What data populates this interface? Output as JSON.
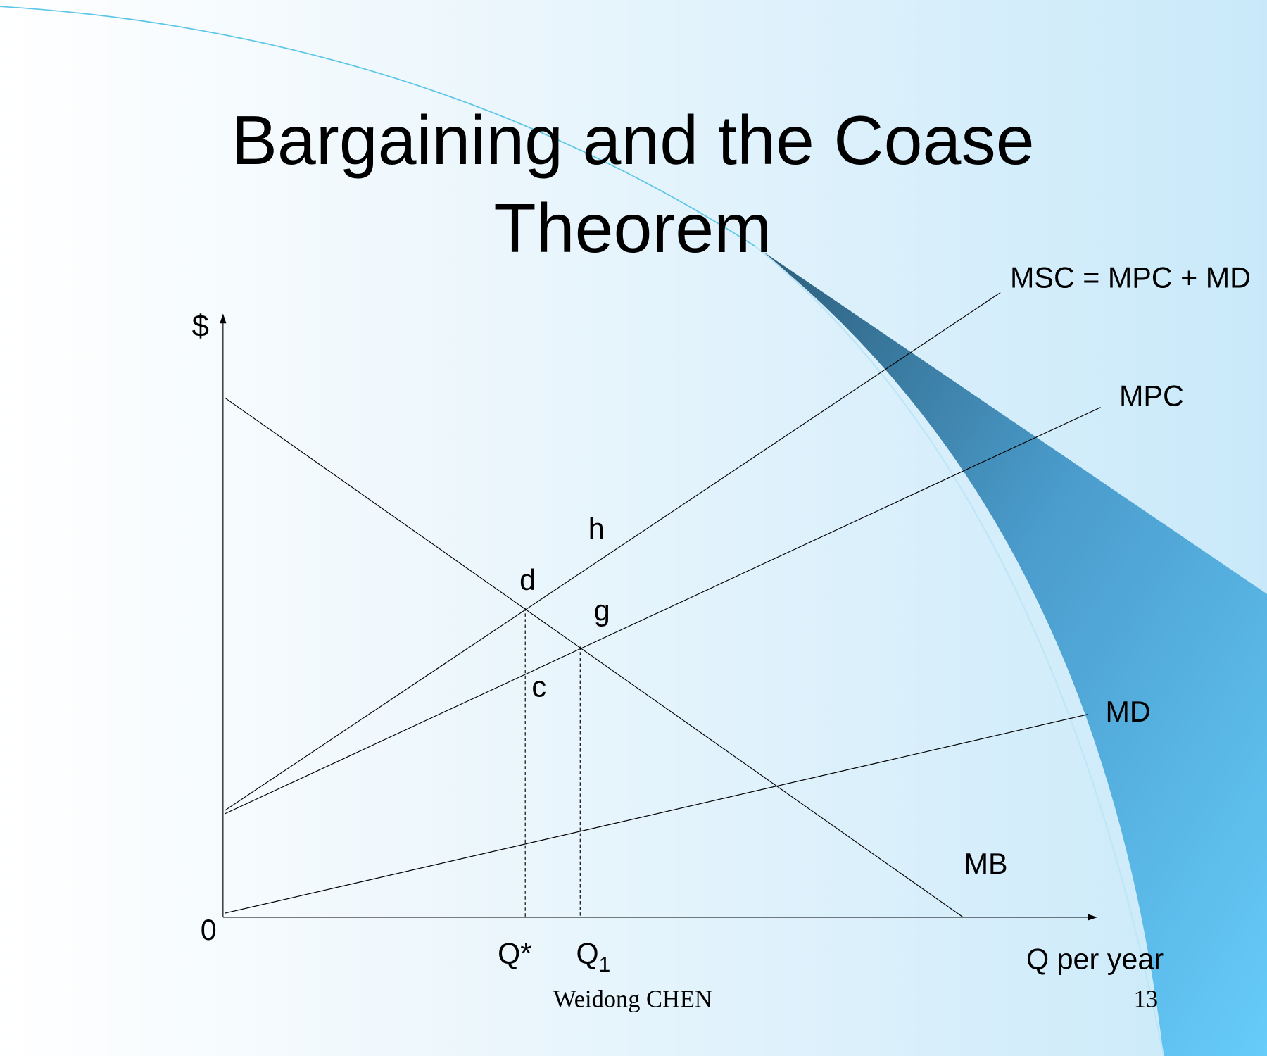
{
  "slide": {
    "title": [
      "Bargaining and the Coase",
      "Theorem"
    ],
    "diagram": {
      "y_axis_label": "$",
      "origin_label": "0",
      "x_axis_label": "Q per year",
      "q_star": "Q*",
      "q1": {
        "label": "Q",
        "subscript": "1"
      },
      "curves": {
        "msc": "MSC = MPC + MD",
        "mpc": "MPC",
        "md": "MD",
        "mb": "MB"
      },
      "points": {
        "h": "h",
        "d": "d",
        "g": "g",
        "c": "c"
      }
    },
    "footer": {
      "author": "Weidong CHEN",
      "page_number": "13"
    }
  }
}
